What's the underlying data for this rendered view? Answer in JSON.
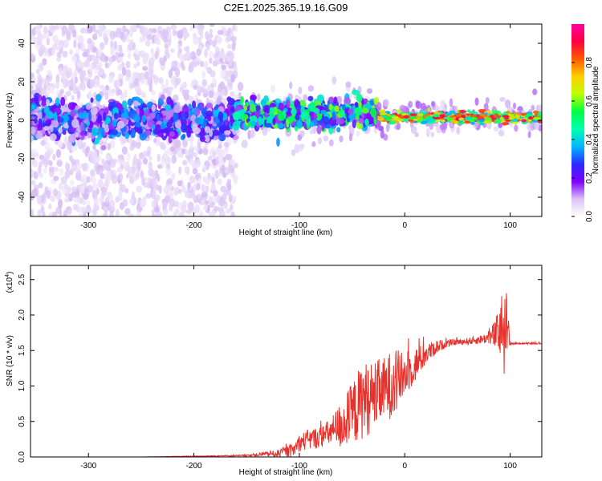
{
  "title": "C2E1.2025.365.19.16.G09",
  "colors": {
    "trace": "#e8312a",
    "axis": "#000000"
  },
  "chart_data": [
    {
      "type": "heatmap",
      "xlabel": "Height of straight line (km)",
      "ylabel": "Frequency (Hz)",
      "xlim": [
        -355,
        130
      ],
      "ylim": [
        -50,
        50
      ],
      "xticks": [
        -300,
        -200,
        -100,
        0,
        100
      ],
      "yticks": [
        -40,
        -20,
        0,
        20,
        40
      ],
      "colorbar": {
        "label": "Normalized spectral amplitude",
        "range": [
          0,
          1
        ],
        "ticks": [
          "0.0",
          "0.2",
          "0.4",
          "0.6",
          "0.8"
        ],
        "tick_values": [
          0,
          0.2,
          0.4,
          0.6,
          0.8
        ],
        "colormap": [
          "#ffffff",
          "#d9c2f4",
          "#7f00ff",
          "#2b2bff",
          "#00b8ff",
          "#00ffb0",
          "#00ff40",
          "#bfff00",
          "#ffd000",
          "#ff5a00",
          "#ff0040",
          "#ff00a0"
        ]
      },
      "segments": [
        {
          "x": [
            -355,
            -160
          ],
          "center_freq": 0,
          "core_halfwidth": 7,
          "scatter_halfwidth": 50,
          "peak_amplitude": 0.35,
          "scatter_amplitude": 0.1
        },
        {
          "x": [
            -160,
            -25
          ],
          "center_freq": 3,
          "core_halfwidth": 5,
          "scatter_halfwidth": 8,
          "peak_amplitude": 0.55,
          "scatter_amplitude": 0.12
        },
        {
          "x": [
            -25,
            130
          ],
          "center_freq": 1.5,
          "core_halfwidth": 2,
          "scatter_halfwidth": 4,
          "peak_amplitude": 0.95,
          "scatter_amplitude": 0.15
        }
      ]
    },
    {
      "type": "line",
      "xlabel": "Height of straight line (km)",
      "ylabel": "SNR (10 * v/v)",
      "y_multiplier": "(x10",
      "y_multiplier_exp": "4",
      "xlim": [
        -355,
        130
      ],
      "ylim": [
        0,
        2.7
      ],
      "xticks": [
        -300,
        -200,
        -100,
        0,
        100
      ],
      "yticks": [
        0.0,
        0.5,
        1.0,
        1.5,
        2.0,
        2.5
      ],
      "ytick_labels": [
        "0.0",
        "0.5",
        "1.0",
        "1.5",
        "2.0",
        "2.5"
      ],
      "series": [
        {
          "x": [
            -355,
            -300,
            -250,
            -200,
            -150,
            -120,
            -105,
            -100,
            -90,
            -80,
            -70,
            -60,
            -50,
            -40,
            -30,
            -20,
            -10,
            0,
            10,
            20,
            30,
            40,
            50,
            60,
            70,
            80,
            90,
            95,
            100,
            110,
            120,
            130
          ],
          "y": [
            0.0,
            0.0,
            0.0,
            0.01,
            0.02,
            0.05,
            0.1,
            0.2,
            0.25,
            0.28,
            0.35,
            0.45,
            0.6,
            0.8,
            0.85,
            0.95,
            1.05,
            1.15,
            1.3,
            1.45,
            1.55,
            1.6,
            1.62,
            1.63,
            1.65,
            1.68,
            1.75,
            1.9,
            1.6,
            1.6,
            1.6,
            1.6
          ],
          "noise": [
            0,
            0,
            0,
            0.005,
            0.01,
            0.05,
            0.1,
            0.12,
            0.15,
            0.15,
            0.2,
            0.35,
            0.45,
            0.55,
            0.5,
            0.45,
            0.5,
            0.3,
            0.25,
            0.15,
            0.1,
            0.05,
            0.04,
            0.05,
            0.06,
            0.08,
            0.35,
            0.8,
            0.02,
            0.01,
            0.01,
            0.01
          ]
        }
      ]
    }
  ]
}
